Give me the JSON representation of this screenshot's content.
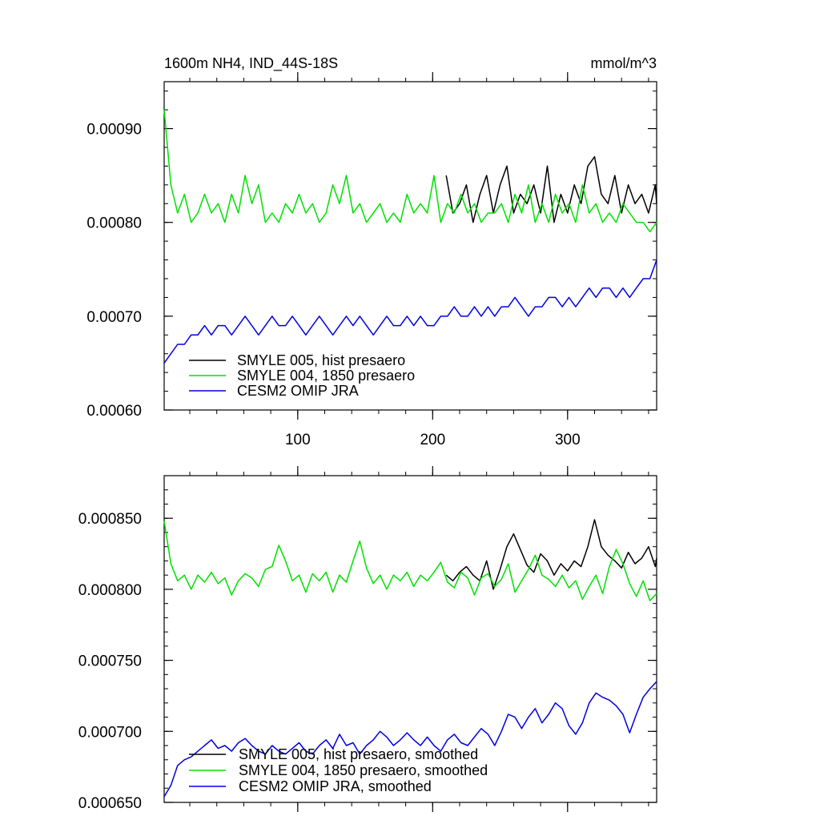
{
  "chart_data": [
    {
      "type": "line",
      "title_left": "1600m NH4, IND_44S-18S",
      "title_right": "mmol/m^3",
      "xlim": [
        1,
        366
      ],
      "ylim": [
        0.0006,
        0.00095
      ],
      "xticks": [
        100,
        200,
        300
      ],
      "xtick_labels": [
        "100",
        "200",
        "300"
      ],
      "yticks": [
        0.0006,
        0.0007,
        0.0008,
        0.0009
      ],
      "ytick_labels": [
        "0.00060",
        "0.00070",
        "0.00080",
        "0.00090"
      ],
      "grid": false,
      "legend_position": "bottom-left",
      "series": [
        {
          "name": "SMYLE 005, hist presaero",
          "color": "#000000",
          "x_start": 210,
          "x_step": 5,
          "values": [
            0.00085,
            0.00081,
            0.00082,
            0.00084,
            0.0008,
            0.00083,
            0.00085,
            0.00081,
            0.00084,
            0.00086,
            0.00081,
            0.00083,
            0.00082,
            0.00084,
            0.00081,
            0.00086,
            0.0008,
            0.00083,
            0.00081,
            0.00084,
            0.00082,
            0.00086,
            0.00087,
            0.00083,
            0.00082,
            0.00085,
            0.00081,
            0.00084,
            0.00082,
            0.00083,
            0.00081,
            0.00084,
            0.00082
          ]
        },
        {
          "name": "SMYLE 004, 1850 presaero",
          "color": "#00e000",
          "x_start": 1,
          "x_step": 5,
          "values": [
            0.00092,
            0.00084,
            0.00081,
            0.00083,
            0.0008,
            0.00081,
            0.00083,
            0.00081,
            0.00082,
            0.0008,
            0.00083,
            0.00081,
            0.00085,
            0.00082,
            0.00084,
            0.0008,
            0.00081,
            0.0008,
            0.00082,
            0.00081,
            0.00083,
            0.00081,
            0.00082,
            0.0008,
            0.00081,
            0.00084,
            0.00082,
            0.00085,
            0.00081,
            0.00082,
            0.0008,
            0.00081,
            0.00082,
            0.0008,
            0.00081,
            0.0008,
            0.00083,
            0.00081,
            0.00082,
            0.00081,
            0.00085,
            0.0008,
            0.00082,
            0.00081,
            0.00083,
            0.00081,
            0.00082,
            0.0008,
            0.00081,
            0.00081,
            0.00082,
            0.0008,
            0.00083,
            0.00081,
            0.00084,
            0.0008,
            0.00082,
            0.0008,
            0.00083,
            0.00081,
            0.00082,
            0.0008,
            0.00084,
            0.00081,
            0.00082,
            0.0008,
            0.00081,
            0.0008,
            0.00082,
            0.00081,
            0.0008,
            0.0008,
            0.00079,
            0.0008
          ]
        },
        {
          "name": "CESM2 OMIP JRA",
          "color": "#0000e0",
          "x_start": 1,
          "x_step": 5,
          "values": [
            0.00065,
            0.00066,
            0.00067,
            0.00067,
            0.00068,
            0.00068,
            0.00069,
            0.00068,
            0.00069,
            0.00069,
            0.00068,
            0.00069,
            0.0007,
            0.00069,
            0.00068,
            0.00069,
            0.0007,
            0.00069,
            0.00069,
            0.0007,
            0.00069,
            0.00068,
            0.00069,
            0.0007,
            0.00069,
            0.00068,
            0.00069,
            0.0007,
            0.00069,
            0.0007,
            0.00069,
            0.00068,
            0.00069,
            0.0007,
            0.00069,
            0.00069,
            0.0007,
            0.00069,
            0.0007,
            0.00069,
            0.00069,
            0.0007,
            0.0007,
            0.00071,
            0.0007,
            0.0007,
            0.00071,
            0.0007,
            0.00071,
            0.0007,
            0.00071,
            0.00071,
            0.00072,
            0.00071,
            0.0007,
            0.00071,
            0.00071,
            0.00072,
            0.00072,
            0.00071,
            0.00072,
            0.00071,
            0.00072,
            0.00073,
            0.00072,
            0.00073,
            0.00073,
            0.00072,
            0.00073,
            0.00072,
            0.00073,
            0.00074,
            0.00074,
            0.00076
          ]
        }
      ]
    },
    {
      "type": "line",
      "xlim": [
        1,
        366
      ],
      "ylim": [
        0.00065,
        0.00088
      ],
      "xticks": [
        100,
        200,
        300
      ],
      "xtick_labels": [
        "",
        "",
        ""
      ],
      "yticks": [
        0.00065,
        0.0007,
        0.00075,
        0.0008,
        0.00085
      ],
      "ytick_labels": [
        "0.000650",
        "0.000700",
        "0.000750",
        "0.000800",
        "0.000850"
      ],
      "grid": false,
      "legend_position": "bottom-left",
      "series": [
        {
          "name": "SMYLE 005, hist presaero, smoothed",
          "color": "#000000",
          "x_start": 210,
          "x_step": 5,
          "values": [
            0.00081,
            0.000806,
            0.000812,
            0.000816,
            0.00081,
            0.000806,
            0.00082,
            0.0008,
            0.000814,
            0.00083,
            0.000839,
            0.000828,
            0.000817,
            0.000812,
            0.000825,
            0.00082,
            0.00081,
            0.000818,
            0.000813,
            0.00082,
            0.000816,
            0.00083,
            0.000849,
            0.00083,
            0.000824,
            0.00082,
            0.000815,
            0.000826,
            0.000818,
            0.000822,
            0.00083,
            0.000816,
            0.000822
          ]
        },
        {
          "name": "SMYLE 004, 1850 presaero, smoothed",
          "color": "#00e000",
          "x_start": 1,
          "x_step": 5,
          "values": [
            0.000848,
            0.000818,
            0.000806,
            0.00081,
            0.0008,
            0.00081,
            0.000805,
            0.000812,
            0.000804,
            0.000808,
            0.000796,
            0.000806,
            0.000811,
            0.000808,
            0.000802,
            0.000814,
            0.000816,
            0.000831,
            0.00082,
            0.000806,
            0.00081,
            0.000798,
            0.000811,
            0.000806,
            0.000812,
            0.000798,
            0.00081,
            0.000805,
            0.00082,
            0.000834,
            0.000815,
            0.000804,
            0.00081,
            0.0008,
            0.00081,
            0.000806,
            0.000812,
            0.000802,
            0.00081,
            0.000806,
            0.000812,
            0.000819,
            0.000805,
            0.000801,
            0.000812,
            0.000808,
            0.000796,
            0.000808,
            0.000811,
            0.000802,
            0.000807,
            0.000818,
            0.000798,
            0.000806,
            0.000814,
            0.000824,
            0.00081,
            0.000807,
            0.000802,
            0.00081,
            0.000801,
            0.000806,
            0.000793,
            0.000802,
            0.00081,
            0.000797,
            0.000816,
            0.000828,
            0.000818,
            0.000804,
            0.000795,
            0.000806,
            0.000792,
            0.000797
          ]
        },
        {
          "name": "CESM2 OMIP JRA, smoothed",
          "color": "#0000e0",
          "x_start": 1,
          "x_step": 5,
          "values": [
            0.000654,
            0.000662,
            0.000676,
            0.00068,
            0.000682,
            0.000686,
            0.00069,
            0.000694,
            0.000688,
            0.00069,
            0.000686,
            0.000692,
            0.000695,
            0.00069,
            0.000686,
            0.000684,
            0.00069,
            0.000686,
            0.000684,
            0.000688,
            0.000692,
            0.000686,
            0.000684,
            0.00069,
            0.000694,
            0.000688,
            0.000698,
            0.00069,
            0.000692,
            0.000684,
            0.00069,
            0.000694,
            0.0007,
            0.000696,
            0.00069,
            0.000694,
            0.000699,
            0.000694,
            0.00069,
            0.000696,
            0.00069,
            0.000686,
            0.000694,
            0.000698,
            0.000692,
            0.00069,
            0.000696,
            0.000702,
            0.000698,
            0.00069,
            0.0007,
            0.000712,
            0.00071,
            0.000702,
            0.00071,
            0.000716,
            0.000706,
            0.000712,
            0.00072,
            0.000716,
            0.000704,
            0.000698,
            0.000706,
            0.00072,
            0.000727,
            0.000724,
            0.000722,
            0.000718,
            0.000712,
            0.000699,
            0.000712,
            0.000724,
            0.00073,
            0.000735
          ]
        }
      ]
    }
  ]
}
